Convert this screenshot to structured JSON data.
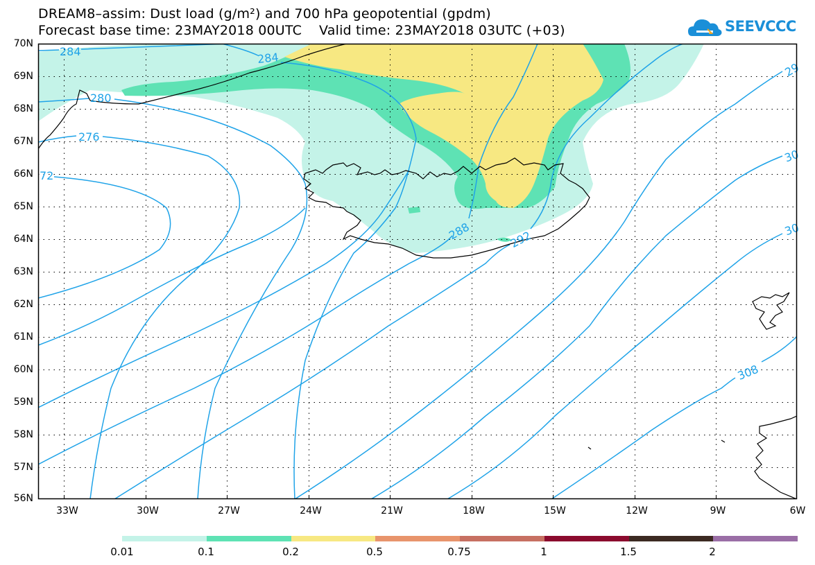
{
  "title_line1": "DREAM8–assim: Dust load (g/m²) and 700 hPa geopotential (gpdm)",
  "title_line2": "Forecast base time: 23MAY2018 00UTC    Valid time: 23MAY2018 03UTC (+03)",
  "logo_text": "SEEVCCC",
  "lat_labels": [
    "70N",
    "69N",
    "68N",
    "67N",
    "66N",
    "65N",
    "64N",
    "63N",
    "62N",
    "61N",
    "60N",
    "59N",
    "58N",
    "57N",
    "56N"
  ],
  "lon_labels": [
    "33W",
    "30W",
    "27W",
    "24W",
    "21W",
    "18W",
    "15W",
    "12W",
    "9W",
    "6W"
  ],
  "contour_labels": [
    {
      "text": "284"
    },
    {
      "text": "284"
    },
    {
      "text": "280"
    },
    {
      "text": "276"
    },
    {
      "text": "72"
    },
    {
      "text": "288"
    },
    {
      "text": "292"
    },
    {
      "text": "29"
    },
    {
      "text": "30"
    },
    {
      "text": "30"
    },
    {
      "text": "308"
    }
  ],
  "colorbar": {
    "colors": [
      "#c4f3e8",
      "#5ee2b4",
      "#f7e882",
      "#e8946c",
      "#c77062",
      "#8b0a2e",
      "#3c2a22",
      "#9a6ea6"
    ],
    "labels": [
      "0.01",
      "0.1",
      "0.2",
      "0.5",
      "0.75",
      "1",
      "1.5",
      "2"
    ]
  },
  "colors": {
    "contour": "#1fa3e8",
    "coast": "#000000",
    "grid": "#000000"
  }
}
